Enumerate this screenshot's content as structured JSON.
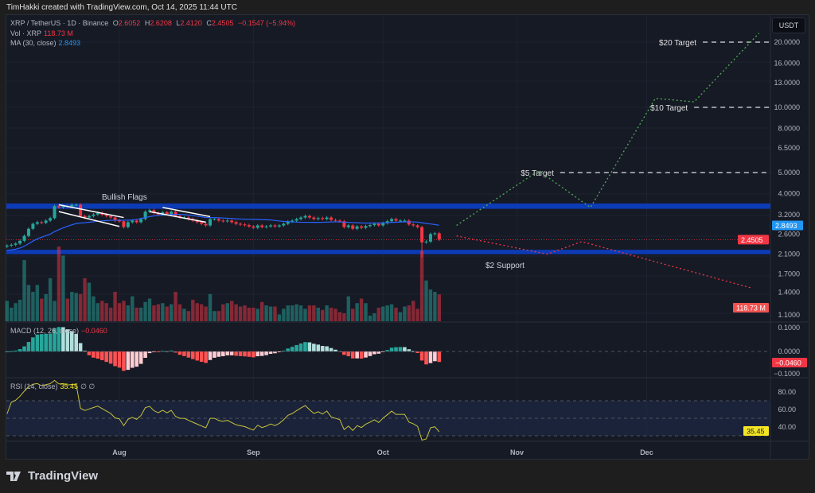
{
  "credit": "TimHakki created with TradingView.com, Oct 14, 2025 11:44 UTC",
  "symbol": {
    "name": "XRP / TetherUS · 1D · Binance",
    "o_label": "O",
    "o": "2.6052",
    "h_label": "H",
    "h": "2.6208",
    "l_label": "L",
    "l": "2.4120",
    "c_label": "C",
    "c": "2.4505",
    "change": "−0.1547 (−5.94%)"
  },
  "vol": {
    "label": "Vol · XRP",
    "value": "118.73 M"
  },
  "ma": {
    "label": "MA (30, close)",
    "value": "2.8493"
  },
  "macd": {
    "label": "MACD (12, 26, close)",
    "value": "−0.0460"
  },
  "rsi": {
    "label": "RSI (14, close)",
    "value": "35.45",
    "extra": "∅ ∅"
  },
  "currency_button": "USDT",
  "price_axis": {
    "scale": "log",
    "ticks": [
      "20.0000",
      "16.0000",
      "13.0000",
      "10.0000",
      "8.0000",
      "6.5000",
      "5.0000",
      "4.0000",
      "3.2000",
      "2.6000",
      "2.1000",
      "1.7000",
      "1.4000",
      "1.1000"
    ],
    "badges": [
      {
        "text": "2.8493",
        "color": "#2196f3"
      },
      {
        "text": "2.4505",
        "color": "#f23645"
      },
      {
        "text": "118.73 M",
        "color": "#ef5350"
      }
    ]
  },
  "macd_axis": {
    "ticks": [
      "0.1000",
      "0.0000",
      "−0.1000"
    ],
    "badge": "−0.0460"
  },
  "rsi_axis": {
    "ticks": [
      "80.00",
      "60.00",
      "40.00"
    ],
    "badge": "35.45",
    "levels": [
      70,
      50,
      30
    ]
  },
  "time_axis": [
    {
      "label": "Aug",
      "date": "2025-08-01"
    },
    {
      "label": "Sep",
      "date": "2025-09-01"
    },
    {
      "label": "Oct",
      "date": "2025-10-01"
    },
    {
      "label": "Nov",
      "date": "2025-11-01"
    },
    {
      "label": "Dec",
      "date": "2025-12-01"
    }
  ],
  "colors": {
    "up": "#26a69a",
    "down": "#f23645",
    "ma": "#2962ff",
    "zone": "#0d3bb5",
    "projection_up": "#4caf50",
    "projection_down": "#f23645",
    "rsi": "#c9c23a"
  },
  "candles": {
    "first_date": "2025-07-06",
    "closes": [
      2.3,
      2.32,
      2.35,
      2.42,
      2.55,
      2.75,
      2.9,
      2.95,
      2.93,
      3.0,
      3.08,
      3.5,
      3.45,
      3.5,
      3.48,
      3.55,
      3.55,
      3.15,
      3.1,
      3.15,
      3.2,
      3.25,
      3.2,
      3.15,
      3.1,
      3.0,
      2.98,
      2.8,
      2.95,
      3.0,
      2.95,
      3.05,
      3.3,
      3.35,
      3.25,
      3.2,
      3.28,
      3.22,
      3.3,
      3.15,
      3.1,
      3.1,
      3.05,
      3.0,
      2.95,
      2.9,
      2.85,
      3.05,
      3.05,
      3.0,
      2.98,
      3.0,
      2.95,
      2.9,
      2.88,
      2.86,
      2.82,
      2.78,
      2.85,
      2.8,
      2.82,
      2.85,
      2.82,
      2.85,
      2.9,
      2.97,
      3.0,
      3.05,
      3.1,
      3.15,
      3.1,
      3.05,
      3.08,
      3.05,
      3.1,
      3.02,
      3.0,
      2.98,
      2.8,
      2.85,
      2.75,
      2.82,
      2.78,
      2.83,
      2.86,
      2.9,
      2.85,
      2.92,
      2.98,
      3.05,
      3.0,
      3.0,
      3.0,
      2.88,
      2.85,
      2.8,
      2.38,
      2.4,
      2.6,
      2.62,
      2.4505
    ],
    "volumes_m": [
      90,
      60,
      80,
      95,
      270,
      160,
      130,
      160,
      100,
      120,
      190,
      90,
      330,
      290,
      100,
      130,
      125,
      120,
      190,
      170,
      110,
      80,
      90,
      80,
      60,
      130,
      80,
      90,
      70,
      110,
      60,
      60,
      85,
      100,
      70,
      75,
      80,
      65,
      75,
      130,
      75,
      55,
      45,
      95,
      80,
      75,
      65,
      120,
      45,
      45,
      75,
      80,
      90,
      75,
      65,
      70,
      60,
      60,
      55,
      85,
      70,
      65,
      65,
      30,
      55,
      70,
      70,
      75,
      70,
      55,
      70,
      70,
      60,
      50,
      70,
      60,
      55,
      40,
      35,
      110,
      55,
      80,
      100,
      80,
      25,
      35,
      60,
      65,
      70,
      75,
      60,
      40,
      65,
      70,
      90,
      55,
      310,
      180,
      140,
      130,
      118.73
    ]
  },
  "zones": [
    {
      "from": 3.4,
      "to": 3.6
    },
    {
      "from": 2.1,
      "to": 2.2
    }
  ],
  "annotations": {
    "bullish_flags": "Bullish Flags",
    "support": "$2 Support",
    "targets": [
      {
        "label": "$20 Target",
        "price": 20,
        "from": "2025-12-14"
      },
      {
        "label": "$10 Target",
        "price": 10,
        "from": "2025-12-12"
      },
      {
        "label": "$5 Target",
        "price": 5,
        "from": "2025-11-11"
      }
    ],
    "flags": [
      [
        [
          "2025-07-18",
          3.55
        ],
        [
          "2025-08-02",
          3.1
        ]
      ],
      [
        [
          "2025-07-18",
          3.3
        ],
        [
          "2025-08-01",
          2.82
        ]
      ],
      [
        [
          "2025-08-11",
          3.45
        ],
        [
          "2025-08-22",
          3.13
        ]
      ],
      [
        [
          "2025-08-08",
          3.3
        ],
        [
          "2025-08-21",
          2.95
        ]
      ]
    ],
    "bull_path": [
      [
        "2025-10-18",
        2.85
      ],
      [
        "2025-11-06",
        5.1
      ],
      [
        "2025-11-18",
        3.45
      ],
      [
        "2025-12-03",
        11.0
      ],
      [
        "2025-12-12",
        10.6
      ],
      [
        "2025-12-27",
        22.0
      ]
    ],
    "bear_path": [
      [
        "2025-10-18",
        2.55
      ],
      [
        "2025-11-08",
        2.1
      ],
      [
        "2025-11-16",
        2.4
      ],
      [
        "2025-12-25",
        1.47
      ]
    ]
  },
  "brand": "TradingView"
}
